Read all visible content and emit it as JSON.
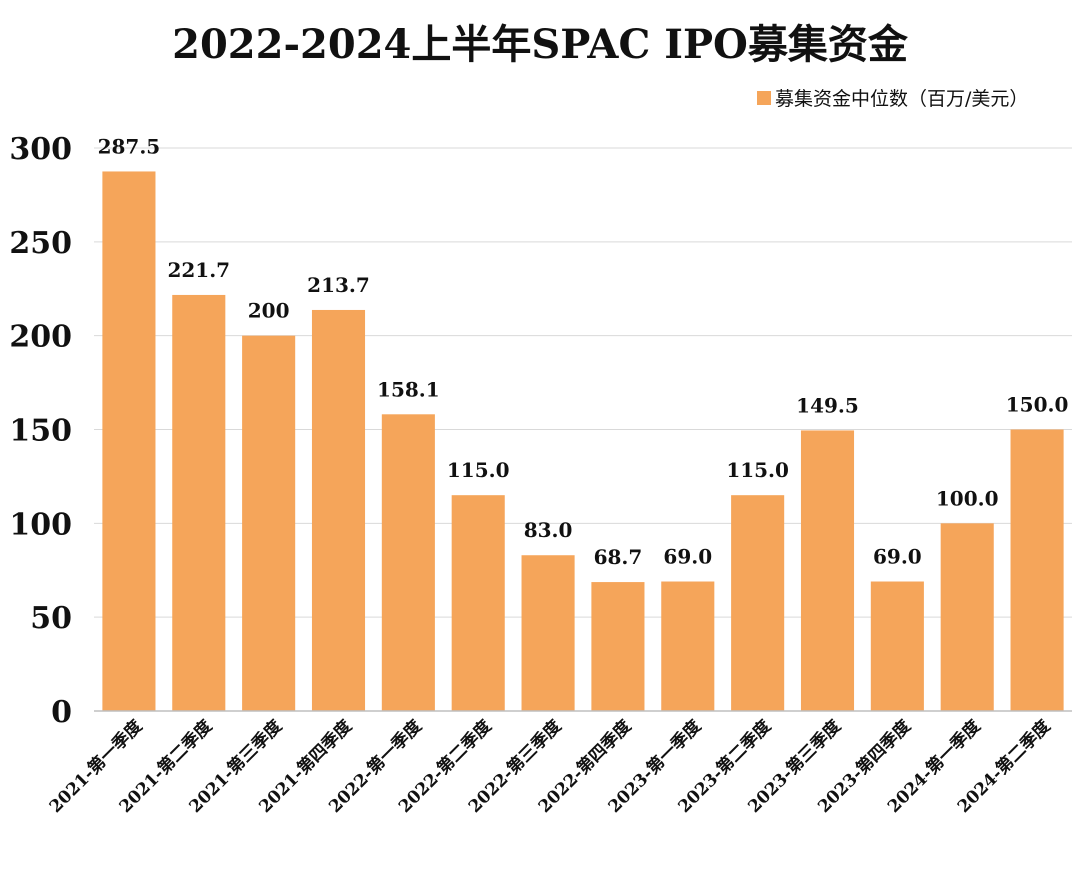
{
  "chart_data": {
    "type": "bar",
    "title": "2022-2024上半年SPAC IPO募集资金",
    "xlabel": "",
    "ylabel": "",
    "ylim": [
      0,
      300
    ],
    "yticks": [
      "0",
      "50",
      "100",
      "150",
      "200",
      "250",
      "300"
    ],
    "grid": true,
    "legend_position": "top-right",
    "categories": [
      "2021-第一季度",
      "2021-第二季度",
      "2021-第三季度",
      "2021-第四季度",
      "2022-第一季度",
      "2022-第二季度",
      "2022-第三季度",
      "2022-第四季度",
      "2023-第一季度",
      "2023-第二季度",
      "2023-第三季度",
      "2023-第四季度",
      "2024-第一季度",
      "2024-第二季度"
    ],
    "series": [
      {
        "name": "募集资金中位数（百万/美元）",
        "color": "#F5A55A",
        "values": [
          287.5,
          221.7,
          200,
          213.7,
          158.1,
          115.0,
          83.0,
          68.7,
          69.0,
          115.0,
          149.5,
          69.0,
          100.0,
          150.0
        ],
        "labels": [
          "287.5",
          "221.7",
          "200",
          "213.7",
          "158.1",
          "115.0",
          "83.0",
          "68.7",
          "69.0",
          "115.0",
          "149.5",
          "69.0",
          "100.0",
          "150.0"
        ]
      }
    ]
  }
}
